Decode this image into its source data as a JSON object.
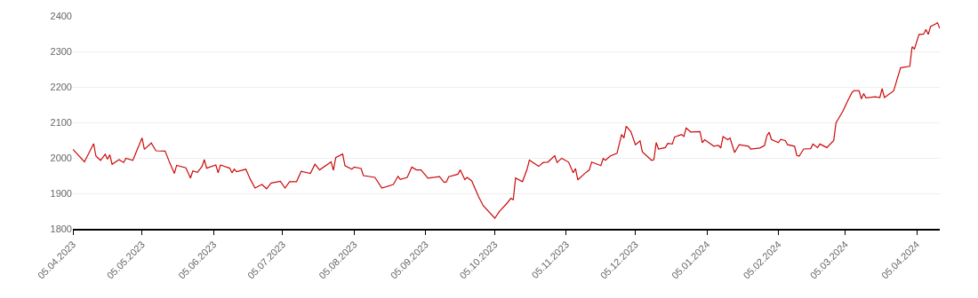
{
  "chart_data": {
    "type": "line",
    "color": "#cc0a0a",
    "grid": "y",
    "marker": "none",
    "line_style": "solid",
    "xlim": [
      "2023-04-05",
      "2024-04-15"
    ],
    "xticks": [
      {
        "value": "2023-04-05",
        "label": "05.04.2023"
      },
      {
        "value": "2023-05-05",
        "label": "05.05.2023"
      },
      {
        "value": "2023-06-05",
        "label": "05.06.2023"
      },
      {
        "value": "2023-07-05",
        "label": "05.07.2023"
      },
      {
        "value": "2023-08-05",
        "label": "05.08.2023"
      },
      {
        "value": "2023-09-05",
        "label": "05.09.2023"
      },
      {
        "value": "2023-10-05",
        "label": "05.10.2023"
      },
      {
        "value": "2023-11-05",
        "label": "05.11.2023"
      },
      {
        "value": "2023-12-05",
        "label": "05.12.2023"
      },
      {
        "value": "2024-01-05",
        "label": "05.01.2024"
      },
      {
        "value": "2024-02-05",
        "label": "05.02.2024"
      },
      {
        "value": "2024-03-05",
        "label": "05.03.2024"
      },
      {
        "value": "2024-04-05",
        "label": "05.04.2024"
      }
    ],
    "ylim": [
      1800,
      2400
    ],
    "yticks": [
      1800,
      1900,
      2000,
      2100,
      2200,
      2300,
      2400
    ],
    "x": [
      "2023-04-05",
      "2023-04-10",
      "2023-04-14",
      "2023-04-15",
      "2023-04-17",
      "2023-04-19",
      "2023-04-20",
      "2023-04-21",
      "2023-04-22",
      "2023-04-25",
      "2023-04-27",
      "2023-04-28",
      "2023-05-01",
      "2023-05-03",
      "2023-05-05",
      "2023-05-06",
      "2023-05-09",
      "2023-05-11",
      "2023-05-15",
      "2023-05-17",
      "2023-05-19",
      "2023-05-20",
      "2023-05-24",
      "2023-05-26",
      "2023-05-27",
      "2023-05-29",
      "2023-05-31",
      "2023-06-01",
      "2023-06-02",
      "2023-06-06",
      "2023-06-07",
      "2023-06-08",
      "2023-06-12",
      "2023-06-13",
      "2023-06-14",
      "2023-06-15",
      "2023-06-19",
      "2023-06-21",
      "2023-06-23",
      "2023-06-26",
      "2023-06-28",
      "2023-06-30",
      "2023-07-04",
      "2023-07-06",
      "2023-07-08",
      "2023-07-11",
      "2023-07-13",
      "2023-07-17",
      "2023-07-19",
      "2023-07-21",
      "2023-07-26",
      "2023-07-27",
      "2023-07-28",
      "2023-07-31",
      "2023-08-01",
      "2023-08-04",
      "2023-08-05",
      "2023-08-08",
      "2023-08-09",
      "2023-08-14",
      "2023-08-17",
      "2023-08-22",
      "2023-08-24",
      "2023-08-25",
      "2023-08-28",
      "2023-08-30",
      "2023-09-01",
      "2023-09-03",
      "2023-09-06",
      "2023-09-11",
      "2023-09-13",
      "2023-09-14",
      "2023-09-15",
      "2023-09-19",
      "2023-09-20",
      "2023-09-22",
      "2023-09-23",
      "2023-09-25",
      "2023-09-28",
      "2023-09-30",
      "2023-10-05",
      "2023-10-07",
      "2023-10-10",
      "2023-10-12",
      "2023-10-13",
      "2023-10-14",
      "2023-10-17",
      "2023-10-19",
      "2023-10-20",
      "2023-10-24",
      "2023-10-26",
      "2023-10-28",
      "2023-10-31",
      "2023-11-01",
      "2023-11-03",
      "2023-11-06",
      "2023-11-08",
      "2023-11-09",
      "2023-11-10",
      "2023-11-13",
      "2023-11-15",
      "2023-11-16",
      "2023-11-20",
      "2023-11-21",
      "2023-11-22",
      "2023-11-24",
      "2023-11-27",
      "2023-11-29",
      "2023-11-30",
      "2023-12-01",
      "2023-12-03",
      "2023-12-05",
      "2023-12-07",
      "2023-12-08",
      "2023-12-12",
      "2023-12-13",
      "2023-12-14",
      "2023-12-15",
      "2023-12-18",
      "2023-12-19",
      "2023-12-21",
      "2023-12-22",
      "2023-12-25",
      "2023-12-26",
      "2023-12-27",
      "2023-12-29",
      "2024-01-02",
      "2024-01-03",
      "2024-01-04",
      "2024-01-08",
      "2024-01-10",
      "2024-01-11",
      "2024-01-12",
      "2024-01-14",
      "2024-01-15",
      "2024-01-17",
      "2024-01-19",
      "2024-01-23",
      "2024-01-24",
      "2024-01-28",
      "2024-01-30",
      "2024-01-31",
      "2024-02-01",
      "2024-02-02",
      "2024-02-05",
      "2024-02-06",
      "2024-02-08",
      "2024-02-09",
      "2024-02-12",
      "2024-02-13",
      "2024-02-14",
      "2024-02-16",
      "2024-02-19",
      "2024-02-20",
      "2024-02-22",
      "2024-02-23",
      "2024-02-26",
      "2024-02-29",
      "2024-03-01",
      "2024-03-04",
      "2024-03-06",
      "2024-03-08",
      "2024-03-09",
      "2024-03-11",
      "2024-03-12",
      "2024-03-13",
      "2024-03-14",
      "2024-03-18",
      "2024-03-20",
      "2024-03-21",
      "2024-03-22",
      "2024-03-26",
      "2024-03-29",
      "2024-04-02",
      "2024-04-03",
      "2024-04-04",
      "2024-04-06",
      "2024-04-08",
      "2024-04-09",
      "2024-04-10",
      "2024-04-11",
      "2024-04-13",
      "2024-04-14",
      "2024-04-15"
    ],
    "values": [
      2024,
      1989,
      2040,
      2005,
      1993,
      2010,
      1996,
      2009,
      1982,
      1995,
      1987,
      1999,
      1993,
      2025,
      2056,
      2024,
      2042,
      2020,
      2019,
      1986,
      1956,
      1979,
      1972,
      1943,
      1963,
      1959,
      1976,
      1995,
      1971,
      1980,
      1958,
      1980,
      1971,
      1958,
      1968,
      1961,
      1968,
      1939,
      1915,
      1925,
      1913,
      1929,
      1934,
      1915,
      1933,
      1933,
      1962,
      1956,
      1982,
      1966,
      1989,
      1965,
      2001,
      2011,
      1978,
      1968,
      1974,
      1970,
      1950,
      1945,
      1915,
      1925,
      1948,
      1939,
      1945,
      1974,
      1966,
      1966,
      1943,
      1947,
      1931,
      1932,
      1947,
      1954,
      1966,
      1939,
      1945,
      1935,
      1890,
      1865,
      1830,
      1849,
      1870,
      1886,
      1882,
      1943,
      1933,
      1968,
      1994,
      1976,
      1987,
      1988,
      2006,
      1987,
      1999,
      1988,
      1958,
      1970,
      1938,
      1956,
      1966,
      1988,
      1978,
      1998,
      1993,
      2005,
      2013,
      2066,
      2056,
      2089,
      2074,
      2037,
      2048,
      2017,
      1993,
      1995,
      2043,
      2025,
      2029,
      2041,
      2039,
      2059,
      2066,
      2060,
      2084,
      2073,
      2074,
      2043,
      2051,
      2033,
      2035,
      2028,
      2060,
      2051,
      2056,
      2015,
      2037,
      2033,
      2025,
      2028,
      2035,
      2062,
      2072,
      2052,
      2043,
      2052,
      2049,
      2037,
      2033,
      2007,
      2005,
      2025,
      2026,
      2039,
      2029,
      2039,
      2029,
      2049,
      2099,
      2132,
      2160,
      2185,
      2190,
      2189,
      2166,
      2181,
      2169,
      2172,
      2170,
      2195,
      2170,
      2189,
      2254,
      2258,
      2313,
      2307,
      2348,
      2349,
      2362,
      2348,
      2370,
      2377,
      2381,
      2365
    ]
  }
}
